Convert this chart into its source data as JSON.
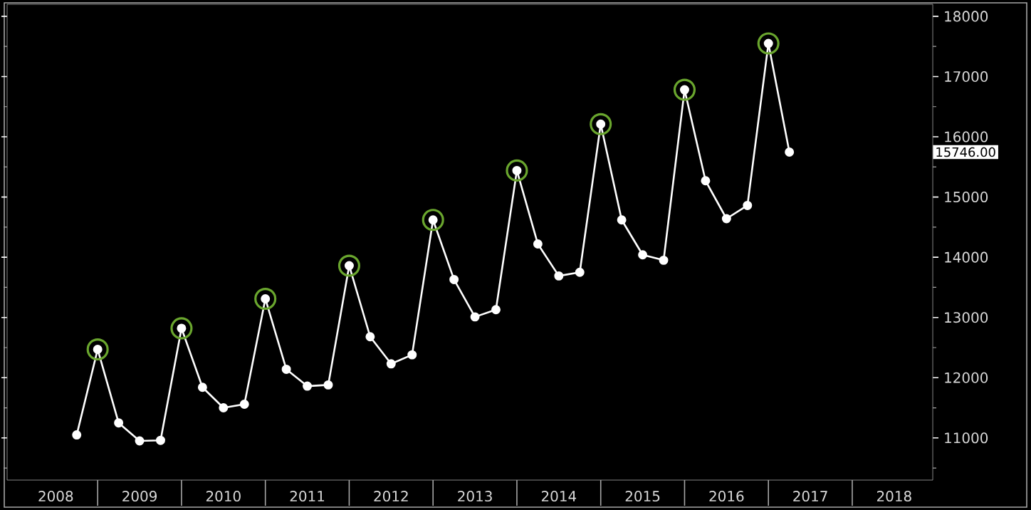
{
  "chart_data": {
    "type": "line",
    "x": [
      "2008-10",
      "2009-01",
      "2009-04",
      "2009-07",
      "2009-10",
      "2010-01",
      "2010-04",
      "2010-07",
      "2010-10",
      "2011-01",
      "2011-04",
      "2011-07",
      "2011-10",
      "2012-01",
      "2012-04",
      "2012-07",
      "2012-10",
      "2013-01",
      "2013-04",
      "2013-07",
      "2013-10",
      "2014-01",
      "2014-04",
      "2014-07",
      "2014-10",
      "2015-01",
      "2015-04",
      "2015-07",
      "2015-10",
      "2016-01",
      "2016-04",
      "2016-07",
      "2016-10",
      "2017-01",
      "2017-04"
    ],
    "series": [
      {
        "color": "#ffffff",
        "values": [
          11050,
          12470,
          11250,
          10950,
          10960,
          12820,
          11840,
          11500,
          11560,
          13310,
          12140,
          11860,
          11880,
          13860,
          12680,
          12230,
          12380,
          14620,
          13630,
          13010,
          13130,
          15440,
          14220,
          13690,
          13750,
          16210,
          14620,
          14040,
          13950,
          16780,
          15270,
          14640,
          14860,
          17550,
          15746
        ]
      },
      {
        "type": "scatter",
        "color": "#6aa62e",
        "x": [
          "2009-01",
          "2010-01",
          "2011-01",
          "2012-01",
          "2013-01",
          "2014-01",
          "2015-01",
          "2016-01",
          "2017-01"
        ],
        "values": [
          12470,
          12820,
          13310,
          13860,
          14620,
          15440,
          16210,
          16780,
          17550
        ]
      }
    ],
    "marker": "circle",
    "xlim": [
      "2007-12-01",
      "2018-12-15"
    ],
    "xticks": [
      {
        "value": "2008-07-01",
        "label": "2008"
      },
      {
        "value": "2009-07-01",
        "label": "2009"
      },
      {
        "value": "2010-07-01",
        "label": "2010"
      },
      {
        "value": "2011-07-01",
        "label": "2011"
      },
      {
        "value": "2012-07-01",
        "label": "2012"
      },
      {
        "value": "2013-07-01",
        "label": "2013"
      },
      {
        "value": "2014-07-01",
        "label": "2014"
      },
      {
        "value": "2015-07-01",
        "label": "2015"
      },
      {
        "value": "2016-07-01",
        "label": "2016"
      },
      {
        "value": "2017-07-01",
        "label": "2017"
      },
      {
        "value": "2018-07-01",
        "label": "2018"
      }
    ],
    "ylim": [
      10300,
      18200
    ],
    "yticks": [
      11000,
      12000,
      13000,
      14000,
      15000,
      16000,
      17000,
      18000,
      {
        "value": 10500,
        "label": null
      },
      {
        "value": 11500,
        "label": null
      },
      {
        "value": 12500,
        "label": null
      },
      {
        "value": 13500,
        "label": null
      },
      {
        "value": 14500,
        "label": null
      },
      {
        "value": 15500,
        "label": null
      },
      {
        "value": 16500,
        "label": null
      },
      {
        "value": 17500,
        "label": null
      }
    ],
    "annotations": [
      "15746.00"
    ]
  }
}
